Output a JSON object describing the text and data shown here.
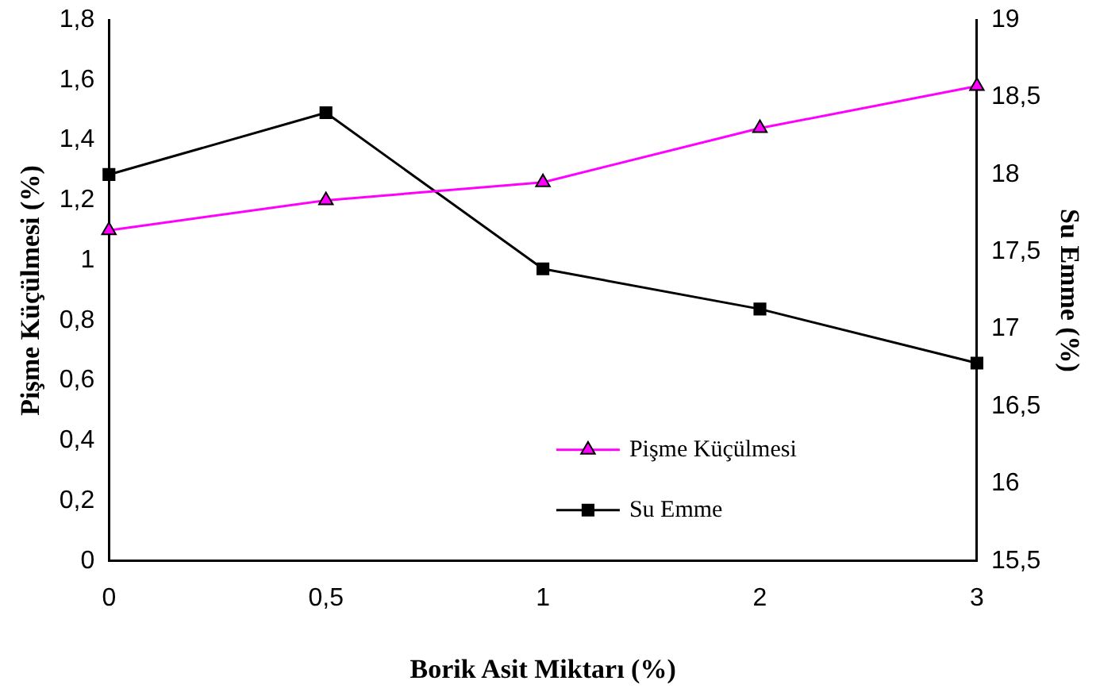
{
  "chart_data": {
    "type": "line",
    "xlabel": "Borik Asit Miktarı (%)",
    "ylabel": "Pişme Küçülmesi (%)",
    "y2label": "Su Emme (%)",
    "categories": [
      "0",
      "0,5",
      "1",
      "2",
      "3"
    ],
    "series": [
      {
        "name": "Pişme Küçülmesi",
        "color": "#ff00ff",
        "marker": "triangle",
        "values": [
          1.1,
          1.2,
          1.26,
          1.44,
          1.58
        ]
      },
      {
        "name": "Su Emme",
        "color": "#000000",
        "marker": "square",
        "axis": "y2",
        "values": [
          18.0,
          18.4,
          17.39,
          17.13,
          16.78
        ]
      }
    ],
    "ylim": [
      0,
      1.8
    ],
    "yticks": [
      0,
      {
        "value": 0.2,
        "label": "0,2"
      },
      {
        "value": 0.4,
        "label": "0,4"
      },
      {
        "value": 0.6,
        "label": "0,6"
      },
      {
        "value": 0.8,
        "label": "0,8"
      },
      1,
      {
        "value": 1.2,
        "label": "1,2"
      },
      {
        "value": 1.4,
        "label": "1,4"
      },
      {
        "value": 1.6,
        "label": "1,6"
      },
      {
        "value": 1.8,
        "label": "1,8"
      }
    ],
    "y2lim": [
      15.5,
      19
    ],
    "y2ticks": [
      {
        "value": 15.5,
        "label": "15,5"
      },
      16,
      {
        "value": 16.5,
        "label": "16,5"
      },
      17,
      {
        "value": 17.5,
        "label": "17,5"
      },
      18,
      {
        "value": 18.5,
        "label": "18,5"
      },
      19
    ],
    "grid": false,
    "legend": "bottom right",
    "line_style": "solid"
  }
}
